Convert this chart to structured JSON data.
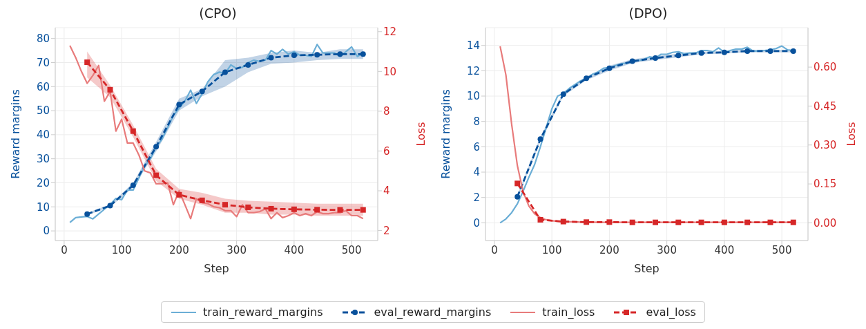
{
  "chart_data": [
    {
      "type": "line",
      "title": "(CPO)",
      "xlabel": "Step",
      "ylabel": "Reward margins",
      "y2label": "Loss",
      "xlim": [
        -15.5,
        545.5
      ],
      "xticks": [
        0,
        100,
        200,
        300,
        400,
        500
      ],
      "ylim": [
        -4,
        84.5
      ],
      "yticks": [
        0,
        10,
        20,
        30,
        40,
        50,
        60,
        70,
        80
      ],
      "y2lim": [
        1.5,
        12.2
      ],
      "y2ticks": [
        2,
        4,
        6,
        8,
        10,
        12
      ],
      "grid": true,
      "legend": "bottom",
      "series": [
        {
          "name": "train_reward_margins",
          "color": "#6baed6",
          "marker": "none",
          "line_style": "solid",
          "x": [
            10,
            20,
            30,
            40,
            50,
            60,
            70,
            80,
            90,
            100,
            110,
            120,
            130,
            140,
            150,
            160,
            170,
            180,
            190,
            200,
            210,
            220,
            230,
            240,
            250,
            260,
            270,
            280,
            290,
            300,
            310,
            320,
            330,
            340,
            350,
            360,
            370,
            380,
            390,
            400,
            410,
            420,
            430,
            440,
            450,
            460,
            470,
            480,
            490,
            500,
            510,
            520
          ],
          "values": [
            3.5,
            5.5,
            5.8,
            6,
            5,
            7,
            9,
            11,
            13.5,
            13,
            17,
            17,
            22,
            27,
            30,
            35,
            38,
            43,
            48,
            51,
            54,
            58.5,
            53,
            57,
            62,
            65,
            66,
            65.5,
            69,
            67.5,
            68,
            70,
            71,
            70.5,
            71,
            75,
            73.5,
            75.5,
            73.5,
            74.5,
            73,
            73,
            72.5,
            77.5,
            74,
            74,
            74,
            72.5,
            74.5,
            76.5,
            72.5,
            74
          ]
        },
        {
          "name": "eval_reward_margins",
          "color": "#08519c",
          "marker": "circle",
          "line_style": "dashed",
          "x": [
            40,
            80,
            120,
            160,
            200,
            240,
            280,
            320,
            360,
            400,
            440,
            480,
            520
          ],
          "values": [
            7,
            10.5,
            19,
            35,
            52.5,
            58,
            66,
            69,
            72,
            73,
            73.2,
            73.5,
            73.5
          ],
          "lower": [
            6.5,
            10,
            18,
            33,
            50,
            56,
            60,
            66,
            69.5,
            70,
            71,
            71.5,
            71.5
          ],
          "upper": [
            7.5,
            11,
            20,
            37,
            55,
            59,
            71,
            72,
            74,
            75,
            74,
            75.5,
            75.5
          ]
        },
        {
          "name": "train_loss",
          "color": "#e87b7b",
          "marker": "none",
          "line_style": "solid",
          "axis": "y2",
          "x": [
            10,
            20,
            30,
            40,
            50,
            60,
            70,
            80,
            90,
            100,
            110,
            120,
            130,
            140,
            150,
            160,
            170,
            180,
            190,
            200,
            210,
            220,
            230,
            240,
            250,
            260,
            270,
            280,
            290,
            300,
            310,
            320,
            330,
            340,
            350,
            360,
            370,
            380,
            390,
            400,
            410,
            420,
            430,
            440,
            450,
            460,
            470,
            480,
            490,
            500,
            510,
            520
          ],
          "values": [
            11.3,
            10.7,
            10.0,
            9.4,
            9.8,
            10.3,
            8.5,
            9.0,
            7.0,
            7.6,
            6.4,
            6.4,
            5.8,
            5.0,
            4.9,
            4.35,
            4.35,
            4.4,
            3.3,
            4.0,
            3.3,
            2.6,
            3.6,
            3.4,
            3.35,
            3.2,
            3.15,
            3.0,
            3.0,
            2.7,
            3.3,
            2.9,
            2.9,
            2.95,
            3.1,
            2.6,
            2.9,
            2.65,
            2.75,
            2.9,
            2.75,
            2.85,
            2.75,
            2.95,
            2.85,
            2.85,
            2.9,
            2.9,
            3.0,
            2.75,
            2.75,
            2.6
          ]
        },
        {
          "name": "eval_loss",
          "color": "#d62728",
          "marker": "square",
          "line_style": "dashed",
          "axis": "y2",
          "x": [
            40,
            80,
            120,
            160,
            200,
            240,
            280,
            320,
            360,
            400,
            440,
            480,
            520
          ],
          "values": [
            10.46,
            9.08,
            7.0,
            4.78,
            3.8,
            3.52,
            3.3,
            3.17,
            3.1,
            3.07,
            3.05,
            3.04,
            3.04
          ],
          "lower": [
            9.7,
            8.7,
            6.7,
            4.5,
            3.6,
            3.3,
            2.9,
            2.9,
            2.8,
            2.8,
            2.75,
            2.75,
            2.75
          ],
          "upper": [
            11.0,
            9.3,
            7.3,
            5.1,
            4.1,
            3.9,
            3.6,
            3.5,
            3.45,
            3.4,
            3.35,
            3.35,
            3.35
          ]
        }
      ]
    },
    {
      "type": "line",
      "title": "(DPO)",
      "xlabel": "Step",
      "ylabel": "Reward margins",
      "y2label": "Loss",
      "xlim": [
        -15.5,
        545.5
      ],
      "xticks": [
        0,
        100,
        200,
        300,
        400,
        500
      ],
      "ylim": [
        -1.4,
        15.4
      ],
      "yticks": [
        0,
        2,
        4,
        6,
        8,
        10,
        12,
        14
      ],
      "y2lim": [
        -0.068,
        0.752
      ],
      "legend": "bottom",
      "y2ticks": [
        {
          "value": 0,
          "label": "0.00"
        },
        {
          "value": 0.15,
          "label": "0.15"
        },
        {
          "value": 0.3,
          "label": "0.30"
        },
        {
          "value": 0.45,
          "label": "0.45"
        },
        {
          "value": 0.6,
          "label": "0.60"
        }
      ],
      "grid": true,
      "series": [
        {
          "name": "train_reward_margins",
          "color": "#6baed6",
          "marker": "none",
          "line_style": "solid",
          "x": [
            10,
            20,
            30,
            40,
            50,
            60,
            70,
            80,
            90,
            100,
            110,
            120,
            130,
            140,
            150,
            160,
            170,
            180,
            190,
            200,
            210,
            220,
            230,
            240,
            250,
            260,
            270,
            280,
            290,
            300,
            310,
            320,
            330,
            340,
            350,
            360,
            370,
            380,
            390,
            400,
            410,
            420,
            430,
            440,
            450,
            460,
            470,
            480,
            490,
            500,
            510,
            520
          ],
          "values": [
            0,
            0.3,
            0.8,
            1.5,
            2.5,
            3.6,
            4.6,
            6.0,
            7.5,
            9.0,
            10.0,
            10.2,
            10.6,
            10.9,
            11.2,
            11.4,
            11.7,
            11.9,
            12.2,
            12.25,
            12.4,
            12.55,
            12.6,
            12.7,
            12.8,
            12.9,
            13.1,
            13.0,
            13.3,
            13.3,
            13.45,
            13.5,
            13.35,
            13.4,
            13.4,
            13.6,
            13.6,
            13.5,
            13.8,
            13.45,
            13.6,
            13.7,
            13.7,
            13.85,
            13.55,
            13.55,
            13.6,
            13.65,
            13.75,
            13.95,
            13.65,
            13.6
          ]
        },
        {
          "name": "eval_reward_margins",
          "color": "#08519c",
          "marker": "circle",
          "line_style": "dashed",
          "x": [
            40,
            80,
            120,
            160,
            200,
            240,
            280,
            320,
            360,
            400,
            440,
            480,
            520
          ],
          "values": [
            2.05,
            6.6,
            10.15,
            11.4,
            12.2,
            12.75,
            13.0,
            13.2,
            13.4,
            13.45,
            13.55,
            13.55,
            13.55
          ],
          "lower": [
            1.9,
            6.4,
            10.0,
            11.25,
            12.0,
            12.6,
            12.85,
            13.05,
            13.3,
            13.35,
            13.45,
            13.45,
            13.45
          ],
          "upper": [
            2.2,
            6.8,
            10.3,
            11.55,
            12.4,
            12.9,
            13.15,
            13.35,
            13.5,
            13.55,
            13.65,
            13.65,
            13.65
          ]
        },
        {
          "name": "train_loss",
          "color": "#e87b7b",
          "marker": "none",
          "line_style": "solid",
          "axis": "y2",
          "x": [
            10,
            20,
            30,
            40,
            50,
            60,
            70,
            80,
            90,
            100,
            110,
            120,
            130,
            140,
            150,
            160,
            170,
            180,
            190,
            200,
            210,
            220,
            230,
            240,
            250,
            260,
            270,
            280,
            290,
            300,
            310,
            320,
            330,
            340,
            350,
            360,
            370,
            380,
            390,
            400,
            410,
            420,
            430,
            440,
            450,
            460,
            470,
            480,
            490,
            500,
            510,
            520
          ],
          "values": [
            0.68,
            0.57,
            0.38,
            0.22,
            0.12,
            0.065,
            0.035,
            0.02,
            0.012,
            0.008,
            0.006,
            0.005,
            0.004,
            0.004,
            0.003,
            0.003,
            0.003,
            0.002,
            0.002,
            0.002,
            0.002,
            0.002,
            0.002,
            0.002,
            0.002,
            0.002,
            0.002,
            0.002,
            0.002,
            0.002,
            0.002,
            0.002,
            0.002,
            0.002,
            0.002,
            0.002,
            0.002,
            0.002,
            0.002,
            0.002,
            0.002,
            0.002,
            0.002,
            0.002,
            0.002,
            0.002,
            0.002,
            0.002,
            0.002,
            0.002,
            0.002,
            0.002
          ]
        },
        {
          "name": "eval_loss",
          "color": "#d62728",
          "marker": "square",
          "line_style": "dashed",
          "axis": "y2",
          "x": [
            40,
            80,
            120,
            160,
            200,
            240,
            280,
            320,
            360,
            400,
            440,
            480,
            520
          ],
          "values": [
            0.152,
            0.012,
            0.005,
            0.003,
            0.003,
            0.002,
            0.002,
            0.002,
            0.002,
            0.002,
            0.002,
            0.002,
            0.002
          ]
        }
      ]
    }
  ]
}
